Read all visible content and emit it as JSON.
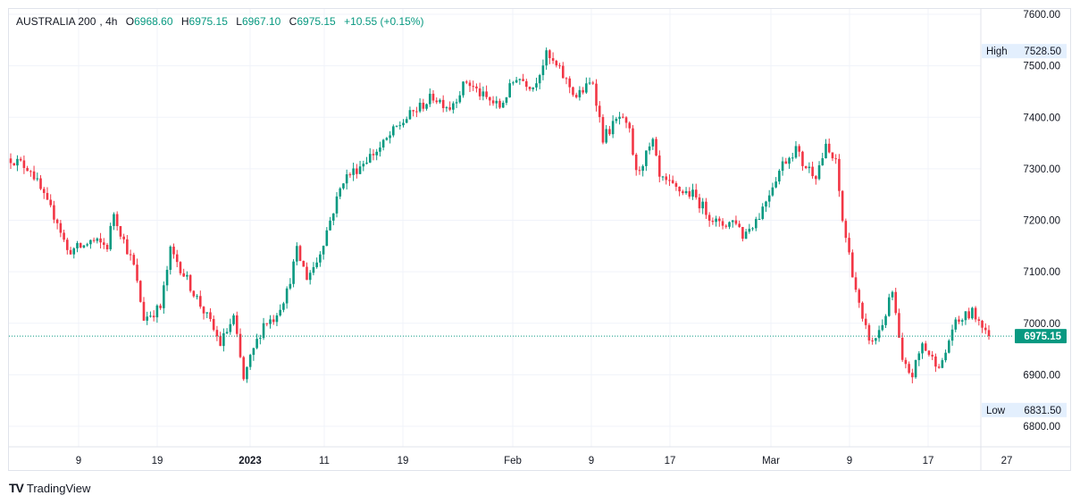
{
  "legend": {
    "symbol": "AUSTRALIA 200",
    "interval": "4h",
    "o_label": "O",
    "open": "6968.60",
    "h_label": "H",
    "high": "6975.15",
    "l_label": "L",
    "low": "6967.10",
    "c_label": "C",
    "close": "6975.15",
    "change": "+10.55 (+0.15%)"
  },
  "branding": {
    "name": "TradingView",
    "mark": "TV"
  },
  "colors": {
    "up": "#089981",
    "down": "#f23645",
    "grid": "#f0f3fa",
    "axis_text": "#131722",
    "price_tag": "#089981",
    "hl_tag": "#e3effd"
  },
  "chart_data": {
    "type": "candlestick",
    "title": "AUSTRALIA 200, 4h",
    "ylim": [
      6780,
      7620
    ],
    "y_ticks": [
      7600,
      7500,
      7400,
      7300,
      7200,
      7100,
      7000,
      6900,
      6800
    ],
    "y_tick_labels": [
      "7600.00",
      "7500.00",
      "7400.00",
      "7300.00",
      "7200.00",
      "7100.00",
      "7000.00",
      "6900.00",
      "6800.00"
    ],
    "x_tick_labels": [
      "9",
      "19",
      "2023",
      "11",
      "19",
      "Feb",
      "9",
      "17",
      "Mar",
      "9",
      "17",
      "27"
    ],
    "last_price": 6975.15,
    "last_price_label": "6975.15",
    "high_marker": {
      "label": "High",
      "value": "7528.50",
      "price": 7528.5
    },
    "low_marker": {
      "label": "Low",
      "value": "6831.50",
      "price": 6831.5
    },
    "path_closes": [
      [
        0,
        7320
      ],
      [
        6,
        7300
      ],
      [
        11,
        7230
      ],
      [
        14,
        7200
      ],
      [
        17,
        7140
      ],
      [
        22,
        7150
      ],
      [
        24,
        7160
      ],
      [
        29,
        7150
      ],
      [
        31,
        7215
      ],
      [
        34,
        7160
      ],
      [
        37,
        7110
      ],
      [
        40,
        7010
      ],
      [
        45,
        7030
      ],
      [
        48,
        7140
      ],
      [
        50,
        7120
      ],
      [
        55,
        7060
      ],
      [
        60,
        7000
      ],
      [
        63,
        6960
      ],
      [
        67,
        7010
      ],
      [
        70,
        6890
      ],
      [
        72,
        6930
      ],
      [
        76,
        7000
      ],
      [
        79,
        7010
      ],
      [
        83,
        7060
      ],
      [
        86,
        7140
      ],
      [
        89,
        7090
      ],
      [
        92,
        7120
      ],
      [
        96,
        7200
      ],
      [
        100,
        7280
      ],
      [
        104,
        7300
      ],
      [
        107,
        7320
      ],
      [
        111,
        7340
      ],
      [
        116,
        7380
      ],
      [
        121,
        7410
      ],
      [
        127,
        7440
      ],
      [
        132,
        7420
      ],
      [
        137,
        7470
      ],
      [
        142,
        7440
      ],
      [
        147,
        7420
      ],
      [
        152,
        7480
      ],
      [
        157,
        7460
      ],
      [
        161,
        7520
      ],
      [
        165,
        7490
      ],
      [
        170,
        7440
      ],
      [
        175,
        7470
      ],
      [
        178,
        7360
      ],
      [
        183,
        7400
      ],
      [
        186,
        7370
      ],
      [
        188,
        7290
      ],
      [
        193,
        7350
      ],
      [
        195,
        7280
      ],
      [
        200,
        7260
      ],
      [
        205,
        7250
      ],
      [
        210,
        7210
      ],
      [
        213,
        7190
      ],
      [
        218,
        7200
      ],
      [
        220,
        7170
      ],
      [
        225,
        7210
      ],
      [
        229,
        7270
      ],
      [
        232,
        7310
      ],
      [
        236,
        7340
      ],
      [
        238,
        7310
      ],
      [
        242,
        7290
      ],
      [
        245,
        7340
      ],
      [
        248,
        7310
      ],
      [
        250,
        7200
      ],
      [
        253,
        7100
      ],
      [
        256,
        7000
      ],
      [
        259,
        6960
      ],
      [
        262,
        7000
      ],
      [
        265,
        7060
      ],
      [
        268,
        6920
      ],
      [
        271,
        6900
      ],
      [
        274,
        6960
      ],
      [
        277,
        6930
      ],
      [
        280,
        6920
      ],
      [
        283,
        6990
      ],
      [
        286,
        7010
      ],
      [
        289,
        7020
      ],
      [
        292,
        7000
      ],
      [
        294,
        6975.15
      ]
    ],
    "n_candles": 295
  }
}
